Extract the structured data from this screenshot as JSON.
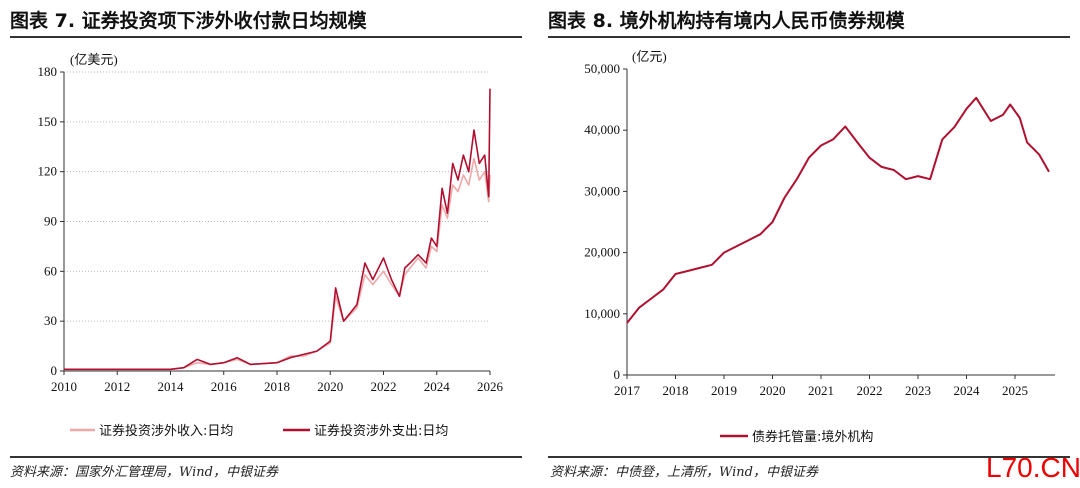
{
  "left": {
    "title": "图表 7. 证券投资项下涉外收付款日均规模",
    "source": "资料来源：国家外汇管理局，Wind，中银证券"
  },
  "right": {
    "title": "图表 8. 境外机构持有境内人民币债券规模",
    "source": "资料来源：中债登，上清所，Wind，中银证券"
  },
  "watermark": "L70.CN",
  "chart_data": [
    {
      "type": "line",
      "ylabel": "(亿美元)",
      "xlim": [
        2010,
        2026
      ],
      "ylim": [
        0,
        180
      ],
      "xticks": [
        "2010",
        "2012",
        "2014",
        "2016",
        "2018",
        "2020",
        "2022",
        "2024",
        "2026"
      ],
      "yticks": [
        "0",
        "30",
        "60",
        "90",
        "120",
        "150",
        "180"
      ],
      "grid": "horizontal dotted",
      "legend": "bottom",
      "series": [
        {
          "name": "证券投资涉外收入:日均",
          "color": "#f0a8a8",
          "x": [
            2010,
            2012,
            2014,
            2014.5,
            2015,
            2015.5,
            2016,
            2016.5,
            2017,
            2018,
            2018.5,
            2019,
            2019.5,
            2020,
            2020.2,
            2020.5,
            2021,
            2021.3,
            2021.6,
            2022,
            2022.3,
            2022.6,
            2022.8,
            2023,
            2023.3,
            2023.6,
            2023.8,
            2024,
            2024.2,
            2024.4,
            2024.6,
            2024.8,
            2025,
            2025.2,
            2025.4,
            2025.6,
            2025.8,
            2025.95,
            2026
          ],
          "y": [
            1,
            1,
            1,
            2,
            5,
            4,
            5,
            7,
            4,
            5,
            9,
            9,
            12,
            17,
            45,
            30,
            38,
            58,
            52,
            60,
            52,
            45,
            58,
            62,
            68,
            62,
            75,
            72,
            100,
            92,
            112,
            108,
            118,
            112,
            128,
            115,
            120,
            102,
            118
          ]
        },
        {
          "name": "证券投资涉外支出:日均",
          "color": "#b01030",
          "x": [
            2010,
            2012,
            2014,
            2014.5,
            2015,
            2015.5,
            2016,
            2016.5,
            2017,
            2018,
            2018.5,
            2019,
            2019.5,
            2020,
            2020.2,
            2020.5,
            2021,
            2021.3,
            2021.6,
            2022,
            2022.3,
            2022.6,
            2022.8,
            2023,
            2023.3,
            2023.6,
            2023.8,
            2024,
            2024.2,
            2024.4,
            2024.6,
            2024.8,
            2025,
            2025.2,
            2025.4,
            2025.6,
            2025.8,
            2025.95,
            2026
          ],
          "y": [
            1,
            1,
            1,
            2,
            7,
            4,
            5,
            8,
            4,
            5,
            8,
            10,
            12,
            18,
            50,
            30,
            40,
            65,
            55,
            68,
            55,
            45,
            62,
            65,
            70,
            65,
            80,
            75,
            110,
            95,
            125,
            115,
            130,
            120,
            145,
            125,
            130,
            105,
            170
          ]
        }
      ]
    },
    {
      "type": "line",
      "ylabel": "(亿元)",
      "xlim": [
        2017,
        2025.7
      ],
      "ylim": [
        0,
        50000
      ],
      "xticks": [
        "2017",
        "2018",
        "2019",
        "2020",
        "2021",
        "2022",
        "2023",
        "2024",
        "2025"
      ],
      "yticks": [
        "0",
        "10,000",
        "20,000",
        "30,000",
        "40,000",
        "50,000"
      ],
      "grid": "none",
      "legend": "bottom",
      "series": [
        {
          "name": "债券托管量:境外机构",
          "color": "#b01030",
          "x": [
            2017,
            2017.25,
            2017.5,
            2017.75,
            2018,
            2018.25,
            2018.5,
            2018.75,
            2019,
            2019.25,
            2019.5,
            2019.75,
            2020,
            2020.25,
            2020.5,
            2020.75,
            2021,
            2021.25,
            2021.5,
            2021.75,
            2022,
            2022.25,
            2022.5,
            2022.75,
            2023,
            2023.25,
            2023.5,
            2023.75,
            2024,
            2024.2,
            2024.5,
            2024.75,
            2024.9,
            2025.1,
            2025.25,
            2025.5,
            2025.7
          ],
          "y": [
            8500,
            11000,
            12500,
            14000,
            16500,
            17000,
            17500,
            18000,
            20000,
            21000,
            22000,
            23000,
            25000,
            29000,
            32000,
            35500,
            37500,
            38500,
            40600,
            38000,
            35500,
            34000,
            33500,
            32000,
            32500,
            32000,
            38500,
            40500,
            43500,
            45300,
            41500,
            42500,
            44200,
            42000,
            38000,
            36000,
            33200
          ]
        }
      ]
    }
  ]
}
